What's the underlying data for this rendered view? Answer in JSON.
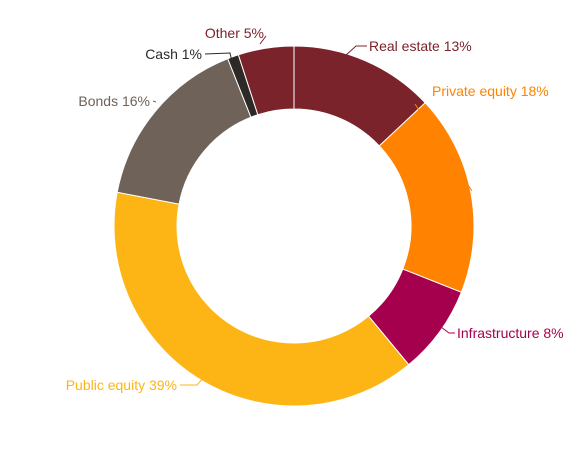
{
  "chart_data": {
    "type": "pie",
    "style": "donut",
    "title": "",
    "categories": [
      "Real estate",
      "Private equity",
      "Infrastructure",
      "Public equity",
      "Bonds",
      "Cash",
      "Other"
    ],
    "values": [
      13,
      18,
      8,
      39,
      16,
      1,
      5
    ],
    "labels": [
      "Real estate 13%",
      "Private equity 18%",
      "Infrastructure 8%",
      "Public equity 39%",
      "Bonds 16%",
      "Cash 1%",
      "Other 5%"
    ],
    "colors": [
      "#7B232B",
      "#FF8200",
      "#A5004D",
      "#FDB515",
      "#6E6259",
      "#2D2926",
      "#7B232B"
    ],
    "label_colors": [
      "#7B232B",
      "#FF8200",
      "#A5004D",
      "#FDB515",
      "#6E6259",
      "#2D2926",
      "#7B232B"
    ],
    "start_angle_deg": 0,
    "direction": "clockwise",
    "legend": "none"
  }
}
